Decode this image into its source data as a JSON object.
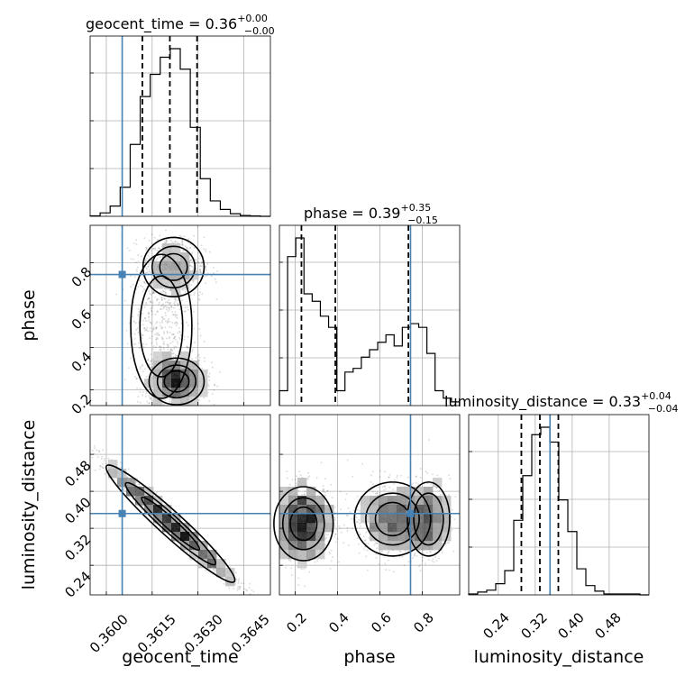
{
  "chart_data": {
    "type": "corner",
    "parameters": [
      "geocent_time",
      "phase",
      "luminosity_distance"
    ],
    "truth_color": "#4682b4",
    "truths": {
      "geocent_time": 0.36052,
      "phase": 0.745,
      "luminosity_distance": 0.352
    },
    "titles": [
      {
        "param": "geocent_time",
        "text": "geocent_time = 0.36",
        "sup": "+0.00",
        "sub": "−0.00"
      },
      {
        "param": "phase",
        "text": "phase = 0.39",
        "sup": "+0.35",
        "sub": "−0.15"
      },
      {
        "param": "luminosity_distance",
        "text": "luminosity_distance = 0.33",
        "sup": "+0.04",
        "sub": "−0.04"
      }
    ],
    "axes": {
      "geocent_time": {
        "range": [
          0.35947,
          0.36537
        ],
        "ticks": [
          "0.3600",
          "0.3615",
          "0.3630",
          "0.3645"
        ],
        "tick_values": [
          0.36,
          0.3615,
          0.363,
          0.3645
        ]
      },
      "phase": {
        "range": [
          0.126,
          0.977
        ],
        "ticks": [
          "0.2",
          "0.4",
          "0.6",
          "0.8"
        ],
        "tick_values": [
          0.2,
          0.4,
          0.6,
          0.8
        ]
      },
      "luminosity_distance": {
        "range": [
          0.176,
          0.566
        ],
        "ticks": [
          "0.24",
          "0.32",
          "0.40",
          "0.48"
        ],
        "tick_values": [
          0.24,
          0.32,
          0.4,
          0.48
        ]
      }
    },
    "marginals": {
      "geocent_time": {
        "bins": [
          0.35947,
          0.36537
        ],
        "counts": [
          0.3,
          2,
          6,
          17,
          42,
          70,
          83,
          93,
          98,
          86,
          52,
          22,
          9,
          4,
          1.5,
          0.5,
          0.2,
          0
        ],
        "quantiles": [
          0.36118,
          0.36208,
          0.36297
        ]
      },
      "phase": {
        "bins": [
          0.126,
          0.977
        ],
        "counts": [
          4,
          40,
          45,
          30,
          28,
          24,
          21,
          4,
          9,
          10,
          13,
          15,
          17,
          19,
          16,
          21,
          22,
          21,
          14,
          4,
          2,
          1
        ],
        "quantiles": [
          0.23,
          0.39,
          0.735
        ]
      },
      "luminosity_distance": {
        "bins": [
          0.176,
          0.566
        ],
        "counts": [
          0.5,
          1.5,
          2.5,
          6,
          13,
          40,
          64,
          86,
          90,
          82,
          51,
          34,
          14,
          5,
          2,
          0.5,
          0.5,
          0.5,
          0.5,
          0
        ],
        "quantiles": [
          0.29,
          0.33,
          0.37
        ]
      }
    },
    "scatter_2d": [
      {
        "x": "geocent_time",
        "y": "phase",
        "blobs": [
          {
            "cx": 0.3623,
            "cy": 0.24,
            "sx": 0.00045,
            "sy": 0.055,
            "n": 1400
          },
          {
            "cx": 0.3622,
            "cy": 0.78,
            "sx": 0.0005,
            "sy": 0.07,
            "n": 700
          },
          {
            "cx": 0.3618,
            "cy": 0.5,
            "sx": 0.0005,
            "sy": 0.17,
            "n": 500
          }
        ]
      },
      {
        "x": "geocent_time",
        "y": "luminosity_distance",
        "correlated": true,
        "slope": -60,
        "intercept": 0.33,
        "center": 0.3621,
        "sx": 0.0011,
        "sy": 0.012,
        "n": 1600
      },
      {
        "x": "phase",
        "y": "luminosity_distance",
        "blobs": [
          {
            "cx": 0.24,
            "cy": 0.33,
            "sx": 0.07,
            "sy": 0.04,
            "n": 1100
          },
          {
            "cx": 0.66,
            "cy": 0.34,
            "sx": 0.09,
            "sy": 0.04,
            "n": 800
          },
          {
            "cx": 0.83,
            "cy": 0.34,
            "sx": 0.05,
            "sy": 0.04,
            "n": 500
          }
        ]
      }
    ]
  }
}
